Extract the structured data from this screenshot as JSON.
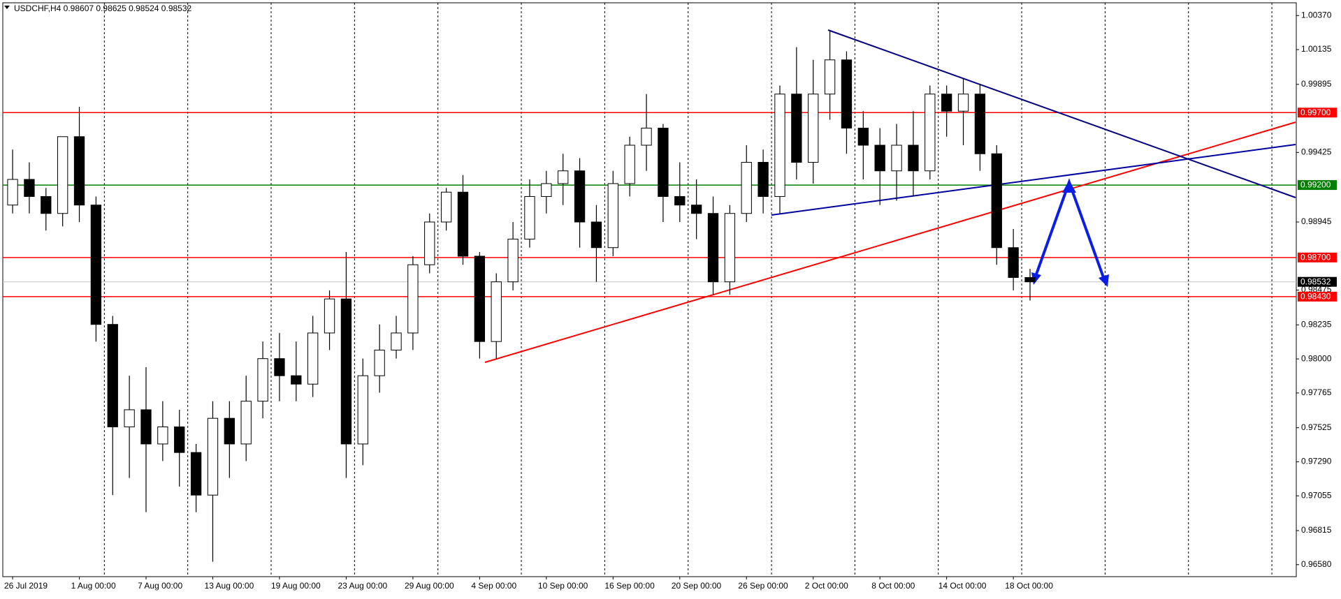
{
  "chart_data": {
    "type": "candlestick",
    "title": "USDCHF,H4  0.98607 0.98625 0.98524 0.98532",
    "categories": [
      "26 Jul 2019",
      null,
      null,
      null,
      "1 Aug 00:00",
      null,
      null,
      null,
      "7 Aug 00:00",
      null,
      null,
      null,
      "13 Aug 00:00",
      null,
      null,
      null,
      "19 Aug 00:00",
      null,
      null,
      null,
      "23 Aug 00:00",
      null,
      null,
      null,
      "29 Aug 00:00",
      null,
      null,
      null,
      "4 Sep 00:00",
      null,
      null,
      null,
      "10 Sep 00:00",
      null,
      null,
      null,
      "16 Sep 00:00",
      null,
      null,
      null,
      "20 Sep 00:00",
      null,
      null,
      null,
      "26 Sep 00:00",
      null,
      null,
      null,
      "2 Oct 00:00",
      null,
      null,
      null,
      "8 Oct 00:00",
      null,
      null,
      null,
      "14 Oct 00:00",
      null,
      null,
      null,
      "18 Oct 00:00",
      null
    ],
    "open": [
      0.99062,
      0.99239,
      0.99121,
      0.99004,
      0.99534,
      0.99062,
      0.98238,
      0.97531,
      0.97649,
      0.97413,
      0.97531,
      0.97354,
      0.9706,
      0.9759,
      0.97413,
      0.97708,
      0.98002,
      0.97884,
      0.97826,
      0.98179,
      0.98414,
      0.97413,
      0.97884,
      0.98061,
      0.98179,
      0.9865,
      0.98945,
      0.99151,
      0.98709,
      0.9812,
      0.98532,
      0.98827,
      0.99121,
      0.9921,
      0.99298,
      0.98945,
      0.98768,
      0.9921,
      0.99475,
      0.99593,
      0.99121,
      0.99062,
      0.99004,
      0.98532,
      0.99004,
      0.99357,
      0.99121,
      0.99828,
      0.99357,
      0.99828,
      1.00064,
      0.99593,
      0.99475,
      0.99298,
      0.99475,
      0.99298,
      0.99828,
      0.9971,
      0.99828,
      0.99416,
      0.98768,
      0.98562
    ],
    "high": [
      0.99445,
      0.99357,
      0.9918,
      0.99534,
      0.9974,
      0.99121,
      0.98297,
      0.97884,
      0.97943,
      0.97708,
      0.97649,
      0.97413,
      0.97708,
      0.97708,
      0.97884,
      0.9812,
      0.98179,
      0.9812,
      0.98297,
      0.98473,
      0.98738,
      0.98002,
      0.98238,
      0.98297,
      0.98709,
      0.99004,
      0.9918,
      0.99269,
      0.98738,
      0.98591,
      0.98945,
      0.99239,
      0.99298,
      0.99416,
      0.99386,
      0.99062,
      0.99298,
      0.99534,
      0.99828,
      0.99622,
      0.99357,
      0.99239,
      0.99121,
      0.99062,
      0.99475,
      0.99445,
      0.99887,
      1.00152,
      1.00064,
      1.0027,
      1.00123,
      0.9971,
      0.99593,
      0.99622,
      0.9971,
      0.99887,
      0.99887,
      0.99934,
      0.99899,
      0.99475,
      0.98897,
      0.98621
    ],
    "low": [
      0.99004,
      0.99004,
      0.98886,
      0.98915,
      0.98945,
      0.9812,
      0.9706,
      0.97178,
      0.96942,
      0.97295,
      0.97119,
      0.96942,
      0.966,
      0.97178,
      0.97295,
      0.9759,
      0.97708,
      0.97708,
      0.97737,
      0.98061,
      0.97178,
      0.97266,
      0.97767,
      0.98002,
      0.98061,
      0.98591,
      0.98886,
      0.9865,
      0.98002,
      0.98002,
      0.98473,
      0.98768,
      0.99004,
      0.99062,
      0.98768,
      0.98532,
      0.98709,
      0.99121,
      0.99298,
      0.98945,
      0.98945,
      0.98827,
      0.98444,
      0.98444,
      0.98945,
      0.99004,
      0.99004,
      0.99239,
      0.9921,
      0.99651,
      0.99416,
      0.99239,
      0.99062,
      0.99092,
      0.99121,
      0.99239,
      0.99534,
      0.99475,
      0.99298,
      0.9865,
      0.98473,
      0.98403
    ],
    "close": [
      0.99239,
      0.99121,
      0.99004,
      0.99534,
      0.99062,
      0.98238,
      0.97531,
      0.97649,
      0.97413,
      0.97531,
      0.97354,
      0.9706,
      0.9759,
      0.97413,
      0.97708,
      0.98002,
      0.97884,
      0.97826,
      0.98179,
      0.98414,
      0.97413,
      0.97884,
      0.98061,
      0.98179,
      0.9865,
      0.98945,
      0.99151,
      0.98709,
      0.9812,
      0.98532,
      0.98827,
      0.99121,
      0.9921,
      0.99298,
      0.98945,
      0.98768,
      0.9921,
      0.99475,
      0.99593,
      0.99121,
      0.99062,
      0.99004,
      0.98532,
      0.99004,
      0.99357,
      0.99121,
      0.99828,
      0.99357,
      0.99828,
      1.00064,
      0.99593,
      0.99475,
      0.99298,
      0.99475,
      0.99298,
      0.99828,
      0.9971,
      0.99828,
      0.99416,
      0.98768,
      0.98562,
      0.98532
    ],
    "ylim": [
      0.96497,
      1.00458
    ],
    "yticks": [
      {
        "value": 1.0037,
        "label": "1.00370"
      },
      {
        "value": 1.00135,
        "label": "1.00135"
      },
      {
        "value": 0.99895,
        "label": "0.99895"
      },
      {
        "value": 0.99425,
        "label": "0.99425"
      },
      {
        "value": 0.98945,
        "label": "0.98945"
      },
      {
        "value": 0.98475,
        "label": "0.98475"
      },
      {
        "value": 0.98235,
        "label": "0.98235"
      },
      {
        "value": 0.98,
        "label": "0.98000"
      },
      {
        "value": 0.97765,
        "label": "0.97765"
      },
      {
        "value": 0.97525,
        "label": "0.97525"
      },
      {
        "value": 0.9729,
        "label": "0.97290"
      },
      {
        "value": 0.97055,
        "label": "0.97055"
      },
      {
        "value": 0.96815,
        "label": "0.96815"
      },
      {
        "value": 0.9658,
        "label": "0.96580"
      }
    ],
    "levels": [
      {
        "value": 0.997,
        "label": "0.99700",
        "color": "#ff0000"
      },
      {
        "value": 0.992,
        "label": "0.99200",
        "color": "#008000"
      },
      {
        "value": 0.987,
        "label": "0.98700",
        "color": "#ff0000"
      },
      {
        "value": 0.9843,
        "label": "0.98430",
        "color": "#ff0000"
      }
    ],
    "current_price": {
      "value": 0.98532,
      "label": "0.98532"
    },
    "grid": true
  }
}
